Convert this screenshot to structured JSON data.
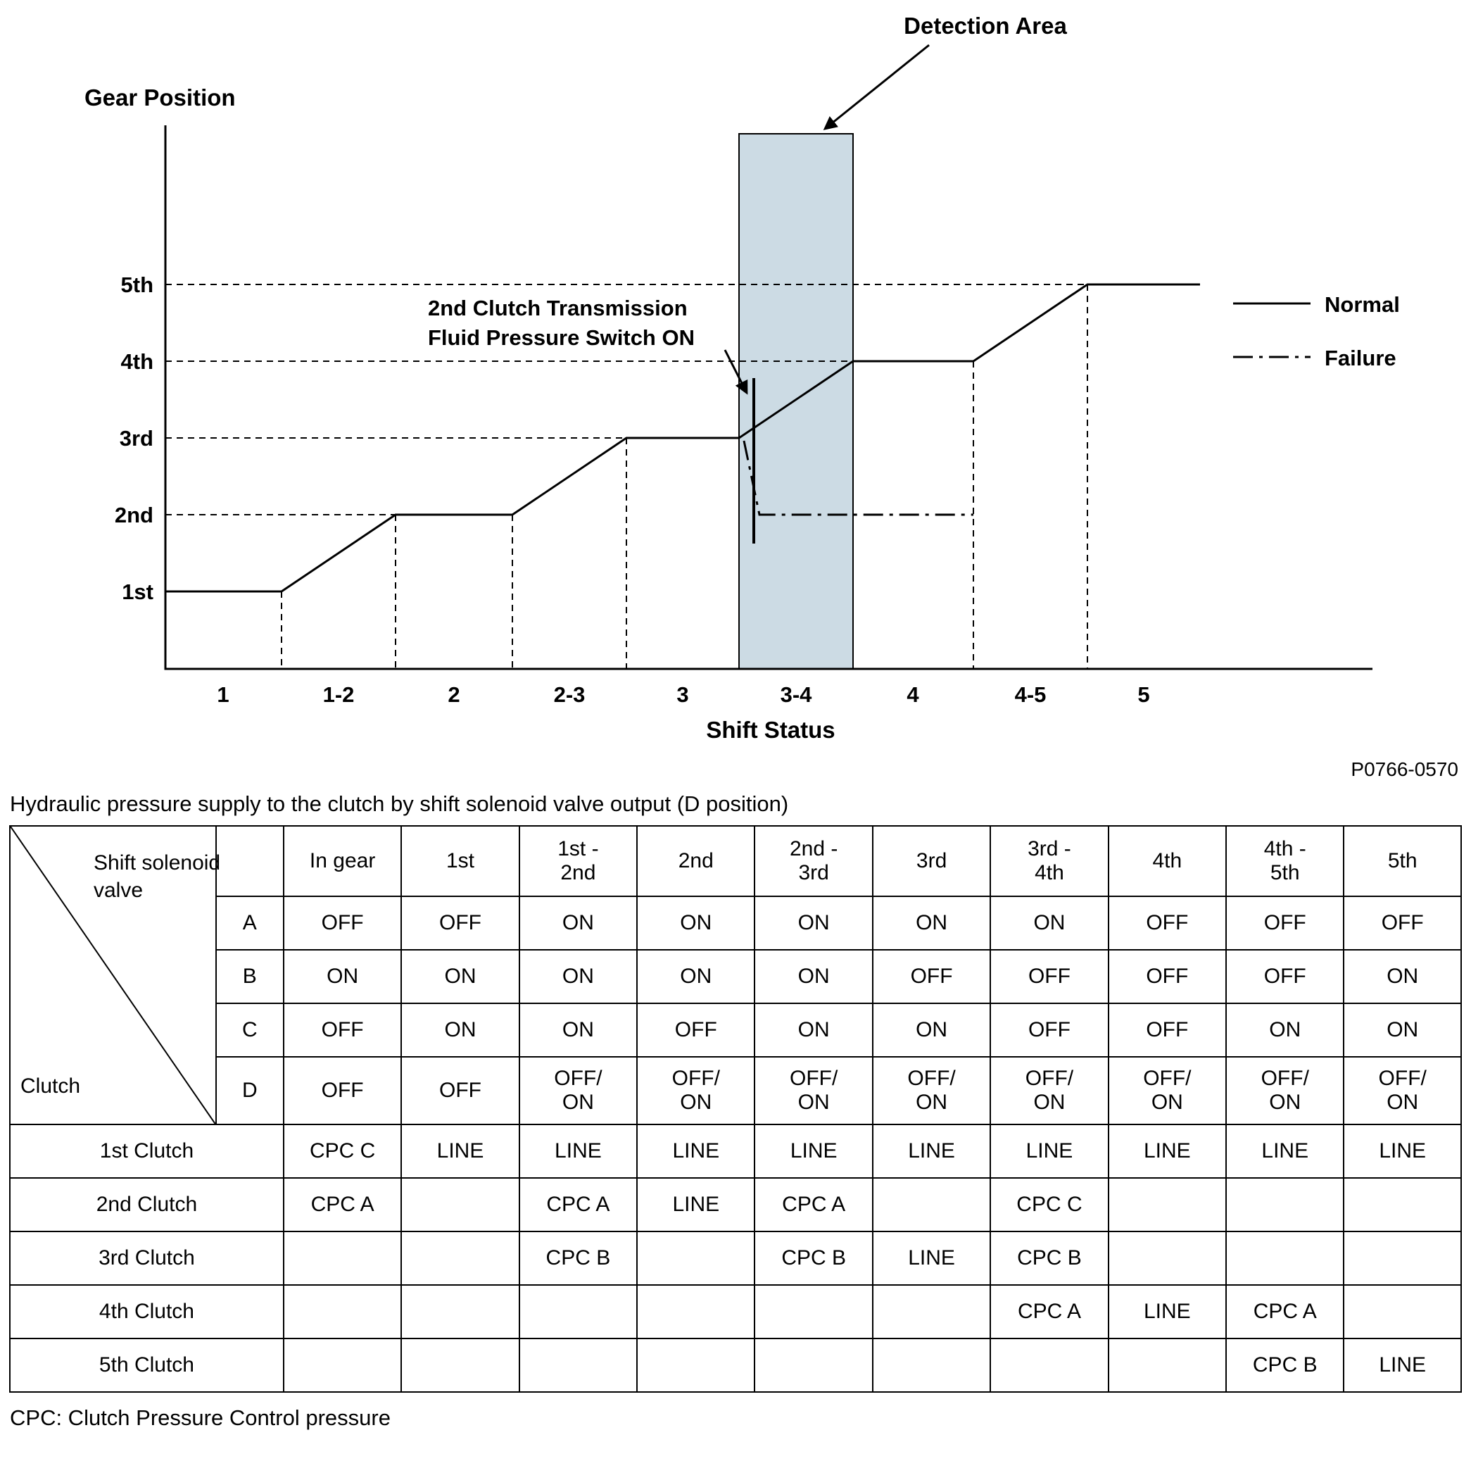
{
  "chart": {
    "detection_label": "Detection Area",
    "y_axis_title": "Gear Position",
    "x_axis_title": "Shift Status",
    "annotation_line1": "2nd Clutch Transmission",
    "annotation_line2": "Fluid Pressure Switch ON",
    "y_ticks": [
      "5th",
      "4th",
      "3rd",
      "2nd",
      "1st"
    ],
    "x_ticks": [
      "1",
      "1-2",
      "2",
      "2-3",
      "3",
      "3-4",
      "4",
      "4-5",
      "5"
    ],
    "legend": {
      "normal": "Normal",
      "failure": "Failure"
    },
    "detection_fill": "#ccdbe4",
    "figure_code": "P0766-0570"
  },
  "chart_data": {
    "type": "line",
    "title": "",
    "xlabel": "Shift Status",
    "ylabel": "Gear Position",
    "x_categories": [
      "1",
      "1-2",
      "2",
      "2-3",
      "3",
      "3-4",
      "4",
      "4-5",
      "5"
    ],
    "y_categories": [
      "1st",
      "2nd",
      "3rd",
      "4th",
      "5th"
    ],
    "series": [
      {
        "name": "Normal",
        "style": "solid",
        "gear_by_shift_status": {
          "1": "1st",
          "1-2": "ramp 1st to 2nd",
          "2": "2nd",
          "2-3": "ramp 2nd to 3rd",
          "3": "3rd",
          "3-4": "ramp 3rd to 4th",
          "4": "4th",
          "4-5": "ramp 4th to 5th",
          "5": "5th"
        }
      },
      {
        "name": "Failure",
        "style": "dash-dot",
        "gear_by_shift_status": {
          "3-4": "drops from 3rd to 2nd at start of shift",
          "4": "2nd"
        }
      }
    ],
    "annotations": [
      "Detection Area (shaded band spanning the 3-4 shift status)",
      "2nd Clutch Transmission Fluid Pressure Switch ON (marker at start of 3-4 shift)"
    ],
    "legend_position": "right",
    "grid": "dashed reference lines at each gear level and shift transition"
  },
  "table_section": {
    "title": "Hydraulic pressure supply to the clutch by shift solenoid valve output (D position)",
    "footnote": "CPC: Clutch Pressure Control pressure",
    "corner": {
      "top_label": "Shift solenoid valve",
      "bottom_label": "Clutch"
    },
    "col_headers": [
      "In gear",
      "1st",
      "1st -\n2nd",
      "2nd",
      "2nd -\n3rd",
      "3rd",
      "3rd -\n4th",
      "4th",
      "4th -\n5th",
      "5th"
    ],
    "solenoid_rows": [
      {
        "label": "A",
        "values": [
          "OFF",
          "OFF",
          "ON",
          "ON",
          "ON",
          "ON",
          "ON",
          "OFF",
          "OFF",
          "OFF"
        ]
      },
      {
        "label": "B",
        "values": [
          "ON",
          "ON",
          "ON",
          "ON",
          "ON",
          "OFF",
          "OFF",
          "OFF",
          "OFF",
          "ON"
        ]
      },
      {
        "label": "C",
        "values": [
          "OFF",
          "ON",
          "ON",
          "OFF",
          "ON",
          "ON",
          "OFF",
          "OFF",
          "ON",
          "ON"
        ]
      },
      {
        "label": "D",
        "values": [
          "OFF",
          "OFF",
          "OFF/\nON",
          "OFF/\nON",
          "OFF/\nON",
          "OFF/\nON",
          "OFF/\nON",
          "OFF/\nON",
          "OFF/\nON",
          "OFF/\nON"
        ]
      }
    ],
    "clutch_rows": [
      {
        "label": "1st Clutch",
        "values": [
          "CPC C",
          "LINE",
          "LINE",
          "LINE",
          "LINE",
          "LINE",
          "LINE",
          "LINE",
          "LINE",
          "LINE"
        ]
      },
      {
        "label": "2nd Clutch",
        "values": [
          "CPC A",
          "",
          "CPC A",
          "LINE",
          "CPC A",
          "",
          "CPC C",
          "",
          "",
          ""
        ]
      },
      {
        "label": "3rd Clutch",
        "values": [
          "",
          "",
          "CPC B",
          "",
          "CPC B",
          "LINE",
          "CPC B",
          "",
          "",
          ""
        ]
      },
      {
        "label": "4th Clutch",
        "values": [
          "",
          "",
          "",
          "",
          "",
          "",
          "CPC A",
          "LINE",
          "CPC A",
          ""
        ]
      },
      {
        "label": "5th Clutch",
        "values": [
          "",
          "",
          "",
          "",
          "",
          "",
          "",
          "",
          "CPC B",
          "LINE"
        ]
      }
    ]
  }
}
